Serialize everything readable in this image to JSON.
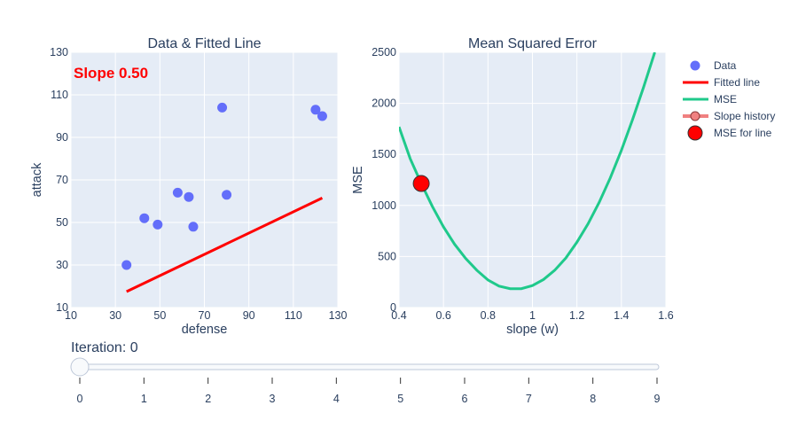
{
  "chart_data": [
    {
      "type": "scatter",
      "title": "Data & Fitted Line",
      "xlabel": "defense",
      "ylabel": "attack",
      "xlim": [
        10,
        130
      ],
      "ylim": [
        10,
        130
      ],
      "xticks": [
        10,
        30,
        50,
        70,
        90,
        110,
        130
      ],
      "yticks": [
        10,
        30,
        50,
        70,
        90,
        110,
        130
      ],
      "annotation": "Slope 0.50",
      "series": [
        {
          "name": "Data",
          "kind": "markers",
          "color": "#636efa",
          "x": [
            35,
            43,
            49,
            58,
            63,
            65,
            78,
            80,
            120,
            123
          ],
          "y": [
            30,
            52,
            49,
            64,
            62,
            48,
            104,
            63,
            103,
            100
          ]
        },
        {
          "name": "Fitted line",
          "kind": "line",
          "color": "#ff0000",
          "x": [
            35,
            123
          ],
          "y": [
            17.5,
            61.5
          ]
        }
      ]
    },
    {
      "type": "line",
      "title": "Mean Squared Error",
      "xlabel": "slope (w)",
      "ylabel": "MSE",
      "xlim": [
        0.4,
        1.6
      ],
      "ylim": [
        0,
        2500
      ],
      "xticks": [
        0.4,
        0.6,
        0.8,
        1,
        1.2,
        1.4,
        1.6
      ],
      "yticks": [
        0,
        500,
        1000,
        1500,
        2000,
        2500
      ],
      "series": [
        {
          "name": "MSE",
          "kind": "line",
          "color": "#1fc98b",
          "x": [
            0.4,
            0.45,
            0.5,
            0.55,
            0.6,
            0.65,
            0.7,
            0.75,
            0.8,
            0.85,
            0.9,
            0.95,
            1.0,
            1.05,
            1.1,
            1.15,
            1.2,
            1.25,
            1.3,
            1.35,
            1.4,
            1.45,
            1.5,
            1.55
          ],
          "y": [
            1770,
            1460,
            1215,
            990,
            790,
            620,
            480,
            365,
            270,
            210,
            185,
            185,
            215,
            275,
            365,
            485,
            640,
            820,
            1030,
            1270,
            1540,
            1840,
            2160,
            2500
          ]
        },
        {
          "name": "Slope history",
          "kind": "lines+markers",
          "color": "#f08080",
          "x": [
            0.5
          ],
          "y": [
            1215
          ]
        },
        {
          "name": "MSE for line",
          "kind": "marker",
          "color": "#ff0000",
          "x": [
            0.5
          ],
          "y": [
            1215
          ]
        }
      ]
    }
  ],
  "legend": {
    "position": "right",
    "items": [
      {
        "label": "Data",
        "symbol": "circle",
        "color": "#636efa"
      },
      {
        "label": "Fitted line",
        "symbol": "line",
        "color": "#ff0000"
      },
      {
        "label": "MSE",
        "symbol": "line",
        "color": "#1fc98b"
      },
      {
        "label": "Slope history",
        "symbol": "line-marker",
        "color": "#f08080"
      },
      {
        "label": "MSE for line",
        "symbol": "big-circle",
        "color": "#ff0000"
      }
    ]
  },
  "slider": {
    "label": "Iteration: 0",
    "current": 0,
    "steps": [
      "0",
      "1",
      "2",
      "3",
      "4",
      "5",
      "6",
      "7",
      "8",
      "9"
    ]
  }
}
